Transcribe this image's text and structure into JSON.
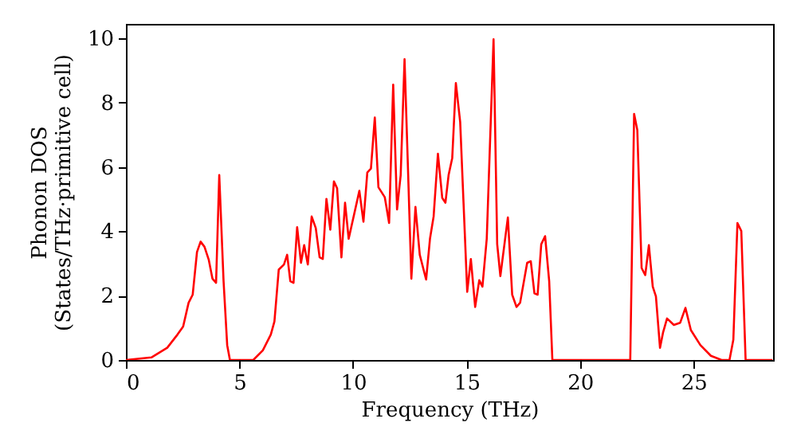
{
  "chart_data": {
    "type": "line",
    "xlabel": "Frequency (THz)",
    "ylabel": "Phonon DOS\n(States/THz·primitive cell)",
    "x": [
      0,
      1.12,
      1.82,
      2.27,
      2.52,
      2.76,
      2.94,
      3.13,
      3.29,
      3.46,
      3.65,
      3.81,
      3.97,
      4.11,
      4.3,
      4.46,
      4.58,
      5.61,
      6.03,
      6.38,
      6.54,
      6.73,
      6.96,
      7.1,
      7.24,
      7.38,
      7.54,
      7.71,
      7.85,
      8.01,
      8.18,
      8.36,
      8.53,
      8.67,
      8.83,
      9.0,
      9.16,
      9.3,
      9.49,
      9.65,
      9.81,
      10.28,
      10.46,
      10.63,
      10.79,
      10.96,
      11.12,
      11.4,
      11.59,
      11.77,
      11.94,
      12.1,
      12.27,
      12.43,
      12.57,
      12.75,
      12.94,
      13.22,
      13.39,
      13.55,
      13.74,
      13.93,
      14.07,
      14.21,
      14.37,
      14.53,
      14.72,
      15.03,
      15.19,
      15.38,
      15.56,
      15.7,
      15.89,
      16.19,
      16.35,
      16.49,
      16.82,
      17.01,
      17.2,
      17.36,
      17.67,
      17.83,
      17.99,
      18.13,
      18.29,
      18.46,
      18.64,
      18.78,
      22.21,
      22.38,
      22.52,
      22.71,
      22.87,
      23.03,
      23.2,
      23.34,
      23.52,
      23.66,
      23.83,
      24.13,
      24.41,
      24.64,
      24.88,
      25.3,
      25.76,
      26.23,
      26.58,
      26.75,
      26.93,
      27.1,
      27.29,
      28.47
    ],
    "series": [
      {
        "color": "#ff0000",
        "values": [
          0,
          0.08,
          0.38,
          0.79,
          1.04,
          1.78,
          2.03,
          3.36,
          3.68,
          3.52,
          3.11,
          2.53,
          2.4,
          5.75,
          2.45,
          0.46,
          0,
          0,
          0.3,
          0.79,
          1.2,
          2.81,
          2.97,
          3.27,
          2.45,
          2.4,
          4.13,
          3.02,
          3.57,
          2.97,
          4.46,
          4.1,
          3.19,
          3.14,
          5.01,
          4.05,
          5.55,
          5.34,
          3.19,
          4.89,
          3.77,
          5.26,
          4.3,
          5.83,
          5.95,
          7.54,
          5.37,
          5.06,
          4.26,
          8.56,
          4.68,
          5.75,
          9.35,
          5.75,
          2.53,
          4.76,
          3.27,
          2.5,
          3.77,
          4.46,
          6.41,
          5.04,
          4.89,
          5.75,
          6.28,
          8.61,
          7.4,
          2.12,
          3.14,
          1.65,
          2.48,
          2.28,
          3.77,
          9.97,
          3.6,
          2.61,
          4.43,
          2.03,
          1.65,
          1.78,
          3.02,
          3.07,
          2.07,
          2.03,
          3.6,
          3.85,
          2.45,
          0,
          0,
          7.65,
          7.15,
          2.86,
          2.64,
          3.57,
          2.28,
          1.98,
          0.38,
          0.87,
          1.29,
          1.09,
          1.16,
          1.62,
          0.93,
          0.46,
          0.13,
          0,
          0,
          0.63,
          4.26,
          4.01,
          0,
          0
        ]
      }
    ],
    "xlim": [
      0,
      28.5
    ],
    "ylim": [
      0,
      10.45
    ],
    "xticks": [
      0,
      5,
      10,
      15,
      20,
      25
    ],
    "yticks": [
      0,
      2,
      4,
      6,
      8,
      10
    ],
    "grid": false,
    "marker": "none",
    "line_style": "solid"
  }
}
